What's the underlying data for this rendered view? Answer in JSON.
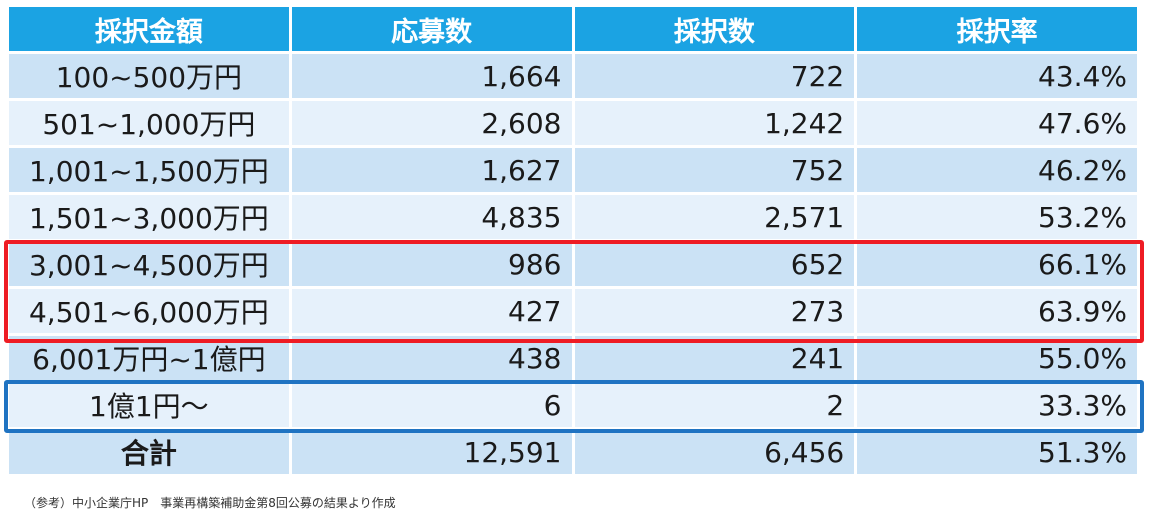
{
  "chart_data": {
    "type": "table",
    "columns": [
      "採択金額",
      "応募数",
      "採択数",
      "採択率"
    ],
    "rows": [
      [
        "100~500万円",
        "1,664",
        "722",
        "43.4%"
      ],
      [
        "501~1,000万円",
        "2,608",
        "1,242",
        "47.6%"
      ],
      [
        "1,001~1,500万円",
        "1,627",
        "752",
        "46.2%"
      ],
      [
        "1,501~3,000万円",
        "4,835",
        "2,571",
        "53.2%"
      ],
      [
        "3,001~4,500万円",
        "986",
        "652",
        "66.1%"
      ],
      [
        "4,501~6,000万円",
        "427",
        "273",
        "63.9%"
      ],
      [
        "6,001万円~1億円",
        "438",
        "241",
        "55.0%"
      ],
      [
        "1億1円～",
        "6",
        "2",
        "33.3%"
      ],
      [
        "合計",
        "12,591",
        "6,456",
        "51.3%"
      ]
    ],
    "highlights": [
      {
        "rows": [
          4,
          5
        ],
        "color": "#ee1c24"
      },
      {
        "rows": [
          7
        ],
        "color": "#1f73c2"
      }
    ],
    "colors": {
      "header": "#1ba3e3",
      "row_odd": "#cbe2f5",
      "row_even": "#e6f1fb"
    }
  },
  "source_note": "（参考）中小企業庁HP　事業再構築補助金第8回公募の結果より作成"
}
